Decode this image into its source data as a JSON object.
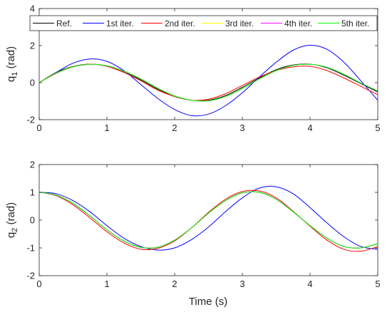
{
  "chart_data": [
    {
      "type": "line",
      "ylabel_main": "q",
      "ylabel_sub": "1",
      "ylabel_unit": " (rad)",
      "xlabel": "",
      "xlim": [
        0,
        5
      ],
      "ylim": [
        -2,
        4
      ],
      "xticks": [
        "0",
        "1",
        "2",
        "3",
        "4",
        "5"
      ],
      "yticks": [
        "-2",
        "0",
        "2",
        "4"
      ],
      "legend": {
        "placement": "top",
        "entries": [
          "Ref.",
          "1st iter.",
          "2nd iter.",
          "3rd iter.",
          "4th iter.",
          "5th iter."
        ]
      },
      "series": [
        {
          "name": "Ref.",
          "color": "#000000",
          "x": [
            0,
            0.25,
            0.5,
            0.75,
            1,
            1.25,
            1.5,
            1.75,
            2,
            2.25,
            2.5,
            2.75,
            3,
            3.25,
            3.5,
            3.75,
            4,
            4.25,
            4.5,
            4.75,
            5
          ],
          "y": [
            0,
            0.55,
            0.87,
            1.0,
            0.9,
            0.6,
            0.15,
            -0.35,
            -0.75,
            -0.95,
            -0.95,
            -0.7,
            -0.25,
            0.25,
            0.7,
            0.95,
            1.0,
            0.8,
            0.4,
            -0.05,
            -0.5
          ]
        },
        {
          "name": "1st iter.",
          "color": "#0000ff",
          "x": [
            0,
            0.25,
            0.5,
            0.75,
            1,
            1.25,
            1.5,
            1.75,
            2,
            2.25,
            2.5,
            2.75,
            3,
            3.25,
            3.5,
            3.75,
            4,
            4.25,
            4.5,
            4.75,
            5
          ],
          "y": [
            0,
            0.55,
            1.05,
            1.28,
            1.15,
            0.65,
            -0.1,
            -0.85,
            -1.45,
            -1.78,
            -1.7,
            -1.25,
            -0.55,
            0.3,
            1.1,
            1.75,
            2.02,
            1.8,
            1.1,
            0.1,
            -0.95
          ]
        },
        {
          "name": "2nd iter.",
          "color": "#ff0000",
          "x": [
            0,
            0.25,
            0.5,
            0.75,
            1,
            1.25,
            1.5,
            1.75,
            2,
            2.25,
            2.5,
            2.75,
            3,
            3.25,
            3.5,
            3.75,
            4,
            4.25,
            4.5,
            4.75,
            5
          ],
          "y": [
            0,
            0.5,
            0.85,
            1.0,
            0.88,
            0.55,
            0.1,
            -0.4,
            -0.75,
            -0.95,
            -0.9,
            -0.6,
            -0.15,
            0.3,
            0.65,
            0.85,
            0.88,
            0.65,
            0.25,
            -0.2,
            -0.65
          ]
        },
        {
          "name": "3rd iter.",
          "color": "#ffff00",
          "x": [
            0,
            0.25,
            0.5,
            0.75,
            1,
            1.25,
            1.5,
            1.75,
            2,
            2.25,
            2.5,
            2.75,
            3,
            3.25,
            3.5,
            3.75,
            4,
            4.25,
            4.5,
            4.75,
            5
          ],
          "y": [
            0,
            0.52,
            0.85,
            0.99,
            0.91,
            0.62,
            0.2,
            -0.3,
            -0.72,
            -0.95,
            -0.98,
            -0.75,
            -0.32,
            0.2,
            0.65,
            0.93,
            0.99,
            0.83,
            0.45,
            -0.02,
            -0.45
          ]
        },
        {
          "name": "4th iter.",
          "color": "#ff00ff",
          "x": [
            0,
            0.25,
            0.5,
            0.75,
            1,
            1.25,
            1.5,
            1.75,
            2,
            2.25,
            2.5,
            2.75,
            3,
            3.25,
            3.5,
            3.75,
            4,
            4.25,
            4.5,
            4.75,
            5
          ],
          "y": [
            0,
            0.52,
            0.85,
            0.99,
            0.91,
            0.62,
            0.2,
            -0.3,
            -0.72,
            -0.95,
            -0.98,
            -0.75,
            -0.32,
            0.2,
            0.65,
            0.93,
            0.99,
            0.83,
            0.45,
            -0.02,
            -0.45
          ]
        },
        {
          "name": "5th iter.",
          "color": "#00ff00",
          "x": [
            0,
            0.25,
            0.5,
            0.75,
            1,
            1.25,
            1.5,
            1.75,
            2,
            2.25,
            2.5,
            2.75,
            3,
            3.25,
            3.5,
            3.75,
            4,
            4.25,
            4.5,
            4.75,
            5
          ],
          "y": [
            0,
            0.52,
            0.85,
            0.99,
            0.91,
            0.62,
            0.2,
            -0.3,
            -0.72,
            -0.95,
            -0.98,
            -0.75,
            -0.32,
            0.2,
            0.65,
            0.93,
            0.99,
            0.83,
            0.45,
            -0.02,
            -0.45
          ]
        }
      ]
    },
    {
      "type": "line",
      "ylabel_main": "q",
      "ylabel_sub": "2",
      "ylabel_unit": " (rad)",
      "xlabel": "Time (s)",
      "xlim": [
        0,
        5
      ],
      "ylim": [
        -2,
        2
      ],
      "xticks": [
        "0",
        "1",
        "2",
        "3",
        "4",
        "5"
      ],
      "yticks": [
        "-2",
        "-1",
        "0",
        "1",
        "2"
      ],
      "series": [
        {
          "name": "Ref.",
          "color": "#000000",
          "x": [
            0,
            0.25,
            0.5,
            0.75,
            1,
            1.25,
            1.5,
            1.75,
            2,
            2.25,
            2.5,
            2.75,
            3,
            3.25,
            3.5,
            3.75,
            4,
            4.25,
            4.5,
            4.75,
            5
          ],
          "y": [
            1.0,
            0.9,
            0.6,
            0.15,
            -0.35,
            -0.75,
            -0.98,
            -0.98,
            -0.72,
            -0.28,
            0.25,
            0.7,
            0.98,
            1.0,
            0.75,
            0.3,
            -0.2,
            -0.65,
            -0.95,
            -1.0,
            -0.85
          ]
        },
        {
          "name": "1st iter.",
          "color": "#0000ff",
          "x": [
            0,
            0.25,
            0.5,
            0.75,
            1,
            1.25,
            1.5,
            1.75,
            2,
            2.25,
            2.5,
            2.75,
            3,
            3.25,
            3.5,
            3.75,
            4,
            4.25,
            4.5,
            4.75,
            5
          ],
          "y": [
            1.0,
            0.95,
            0.7,
            0.3,
            -0.2,
            -0.65,
            -0.95,
            -1.08,
            -1.0,
            -0.7,
            -0.25,
            0.3,
            0.8,
            1.15,
            1.2,
            0.95,
            0.45,
            -0.1,
            -0.6,
            -0.95,
            -1.05
          ]
        },
        {
          "name": "2nd iter.",
          "color": "#ff0000",
          "x": [
            0,
            0.25,
            0.5,
            0.75,
            1,
            1.25,
            1.5,
            1.75,
            2,
            2.25,
            2.5,
            2.75,
            3,
            3.25,
            3.5,
            3.75,
            4,
            4.25,
            4.5,
            4.75,
            5
          ],
          "y": [
            1.0,
            0.88,
            0.55,
            0.08,
            -0.42,
            -0.82,
            -1.05,
            -1.02,
            -0.75,
            -0.28,
            0.28,
            0.75,
            1.03,
            1.05,
            0.8,
            0.32,
            -0.22,
            -0.72,
            -1.05,
            -1.12,
            -0.95
          ]
        },
        {
          "name": "3rd iter.",
          "color": "#ffff00",
          "x": [
            0,
            0.25,
            0.5,
            0.75,
            1,
            1.25,
            1.5,
            1.75,
            2,
            2.25,
            2.5,
            2.75,
            3,
            3.25,
            3.5,
            3.75,
            4,
            4.25,
            4.5,
            4.75,
            5
          ],
          "y": [
            1.0,
            0.9,
            0.6,
            0.15,
            -0.35,
            -0.75,
            -0.98,
            -0.98,
            -0.72,
            -0.28,
            0.25,
            0.7,
            0.98,
            1.0,
            0.75,
            0.3,
            -0.2,
            -0.65,
            -0.95,
            -1.0,
            -0.85
          ]
        },
        {
          "name": "4th iter.",
          "color": "#ff00ff",
          "x": [
            0,
            0.25,
            0.5,
            0.75,
            1,
            1.25,
            1.5,
            1.75,
            2,
            2.25,
            2.5,
            2.75,
            3,
            3.25,
            3.5,
            3.75,
            4,
            4.25,
            4.5,
            4.75,
            5
          ],
          "y": [
            1.0,
            0.9,
            0.6,
            0.15,
            -0.35,
            -0.75,
            -0.98,
            -0.98,
            -0.72,
            -0.28,
            0.25,
            0.7,
            0.98,
            1.0,
            0.75,
            0.3,
            -0.2,
            -0.65,
            -0.95,
            -1.0,
            -0.85
          ]
        },
        {
          "name": "5th iter.",
          "color": "#00ff00",
          "x": [
            0,
            0.25,
            0.5,
            0.75,
            1,
            1.25,
            1.5,
            1.75,
            2,
            2.25,
            2.5,
            2.75,
            3,
            3.25,
            3.5,
            3.75,
            4,
            4.25,
            4.5,
            4.75,
            5
          ],
          "y": [
            1.0,
            0.9,
            0.6,
            0.15,
            -0.35,
            -0.75,
            -0.98,
            -0.98,
            -0.72,
            -0.28,
            0.25,
            0.7,
            0.98,
            1.0,
            0.75,
            0.3,
            -0.2,
            -0.65,
            -0.95,
            -1.0,
            -0.85
          ]
        }
      ]
    }
  ]
}
